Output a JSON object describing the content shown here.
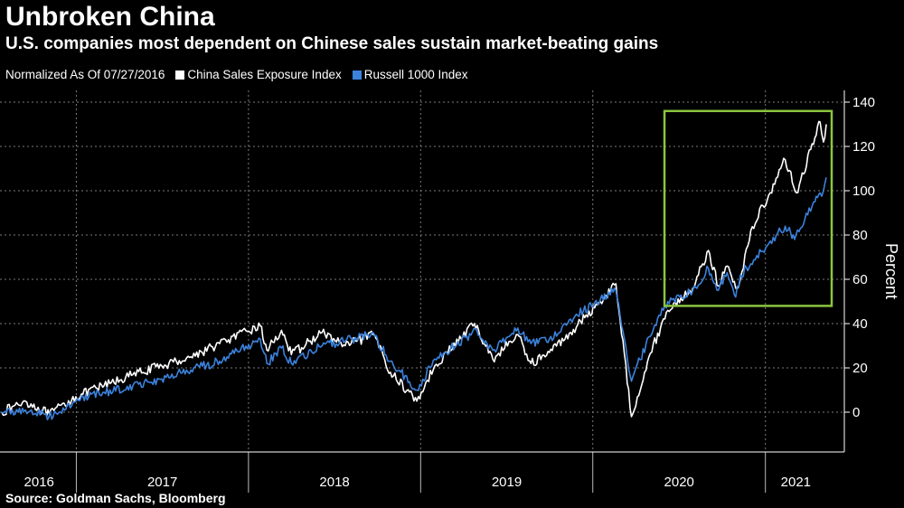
{
  "header": {
    "title": "Unbroken China",
    "subtitle": "U.S. companies most dependent on Chinese sales sustain market-beating gains"
  },
  "legend": {
    "prefix": "Normalized As Of 07/27/2016",
    "items": [
      {
        "label": "China Sales Exposure Index",
        "color": "#ffffff"
      },
      {
        "label": "Russell 1000 Index",
        "color": "#3b82dc"
      }
    ]
  },
  "source": "Source: Goldman Sachs, Bloomberg",
  "colors": {
    "background": "#000000",
    "highlight_box": "#8bc53f",
    "grid": "#7a7a7a"
  },
  "chart_data": {
    "type": "line",
    "ylabel": "Percent",
    "ylim": [
      -20,
      140
    ],
    "yticks": [
      0,
      20,
      40,
      60,
      80,
      100,
      120,
      140
    ],
    "xlim": [
      "2016-07-27",
      "2021-05-10"
    ],
    "year_labels": [
      "2016",
      "2017",
      "2018",
      "2019",
      "2020",
      "2021"
    ],
    "grid": true,
    "highlight": {
      "x": [
        "2020-06-01",
        "2021-05-10"
      ],
      "y": [
        48,
        136
      ]
    },
    "series": [
      {
        "name": "China Sales Exposure Index",
        "color": "#ffffff",
        "points": [
          [
            "2016-07-27",
            0
          ],
          [
            "2016-09-15",
            5
          ],
          [
            "2016-11-05",
            -1
          ],
          [
            "2016-12-31",
            7
          ],
          [
            "2017-03-01",
            12
          ],
          [
            "2017-05-01",
            17
          ],
          [
            "2017-07-01",
            21
          ],
          [
            "2017-09-01",
            25
          ],
          [
            "2017-11-01",
            31
          ],
          [
            "2018-01-26",
            39
          ],
          [
            "2018-02-09",
            28
          ],
          [
            "2018-03-12",
            37
          ],
          [
            "2018-04-02",
            26
          ],
          [
            "2018-06-06",
            36
          ],
          [
            "2018-07-25",
            30
          ],
          [
            "2018-09-25",
            35
          ],
          [
            "2018-10-29",
            18
          ],
          [
            "2018-12-24",
            5
          ],
          [
            "2019-01-31",
            21
          ],
          [
            "2019-04-25",
            40
          ],
          [
            "2019-06-03",
            24
          ],
          [
            "2019-07-26",
            35
          ],
          [
            "2019-08-23",
            22
          ],
          [
            "2019-10-01",
            27
          ],
          [
            "2019-11-15",
            36
          ],
          [
            "2020-01-17",
            50
          ],
          [
            "2020-02-19",
            58
          ],
          [
            "2020-03-23",
            -2
          ],
          [
            "2020-04-29",
            25
          ],
          [
            "2020-06-08",
            46
          ],
          [
            "2020-07-31",
            56
          ],
          [
            "2020-09-02",
            73
          ],
          [
            "2020-09-23",
            57
          ],
          [
            "2020-10-12",
            66
          ],
          [
            "2020-10-30",
            56
          ],
          [
            "2020-11-09",
            60
          ],
          [
            "2020-12-01",
            82
          ],
          [
            "2021-01-08",
            98
          ],
          [
            "2021-02-12",
            114
          ],
          [
            "2021-03-08",
            99
          ],
          [
            "2021-04-16",
            124
          ],
          [
            "2021-04-27",
            131
          ],
          [
            "2021-05-04",
            122
          ],
          [
            "2021-05-10",
            130
          ]
        ]
      },
      {
        "name": "Russell 1000 Index",
        "color": "#3b82dc",
        "points": [
          [
            "2016-07-27",
            0
          ],
          [
            "2016-09-15",
            1
          ],
          [
            "2016-11-04",
            -2
          ],
          [
            "2016-12-31",
            5
          ],
          [
            "2017-03-01",
            9
          ],
          [
            "2017-05-01",
            12
          ],
          [
            "2017-07-01",
            15
          ],
          [
            "2017-09-01",
            19
          ],
          [
            "2017-11-01",
            23
          ],
          [
            "2018-01-26",
            33
          ],
          [
            "2018-02-09",
            22
          ],
          [
            "2018-03-12",
            29
          ],
          [
            "2018-04-02",
            22
          ],
          [
            "2018-06-06",
            30
          ],
          [
            "2018-07-25",
            32
          ],
          [
            "2018-09-20",
            36
          ],
          [
            "2018-10-29",
            23
          ],
          [
            "2018-12-24",
            10
          ],
          [
            "2019-01-31",
            24
          ],
          [
            "2019-04-30",
            37
          ],
          [
            "2019-06-03",
            28
          ],
          [
            "2019-07-26",
            38
          ],
          [
            "2019-08-23",
            31
          ],
          [
            "2019-10-01",
            33
          ],
          [
            "2019-11-15",
            42
          ],
          [
            "2020-01-17",
            51
          ],
          [
            "2020-02-19",
            55
          ],
          [
            "2020-03-23",
            14
          ],
          [
            "2020-04-29",
            34
          ],
          [
            "2020-06-08",
            50
          ],
          [
            "2020-07-31",
            55
          ],
          [
            "2020-09-02",
            65
          ],
          [
            "2020-09-23",
            55
          ],
          [
            "2020-10-12",
            63
          ],
          [
            "2020-10-30",
            52
          ],
          [
            "2020-11-09",
            62
          ],
          [
            "2020-12-01",
            67
          ],
          [
            "2021-01-08",
            76
          ],
          [
            "2021-02-12",
            84
          ],
          [
            "2021-03-04",
            78
          ],
          [
            "2021-04-16",
            95
          ],
          [
            "2021-04-27",
            99
          ],
          [
            "2021-05-04",
            100
          ],
          [
            "2021-05-10",
            106
          ]
        ]
      }
    ]
  }
}
